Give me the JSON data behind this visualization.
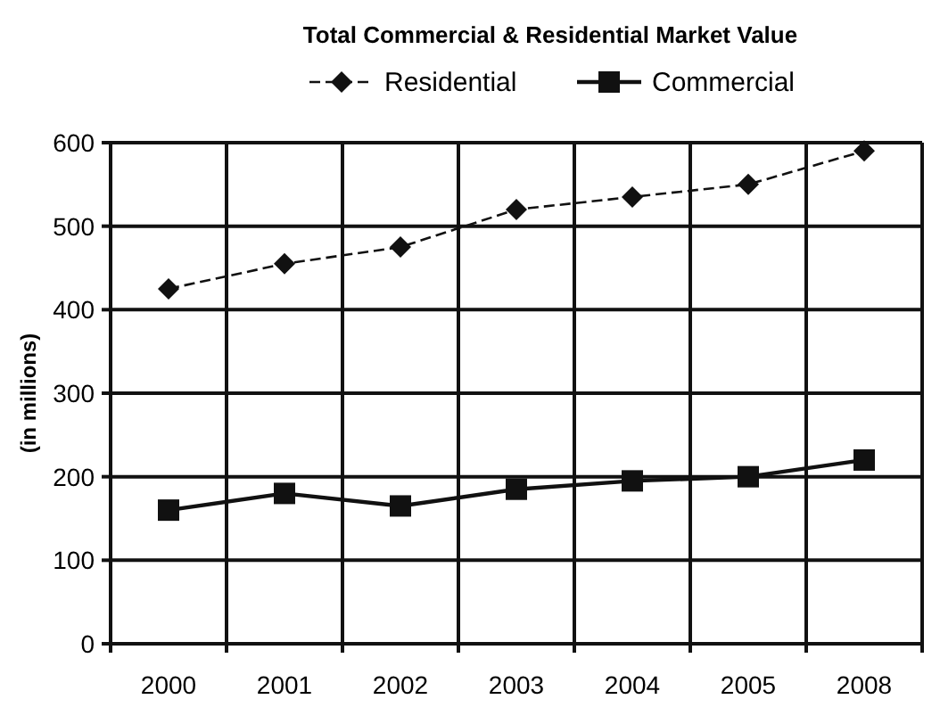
{
  "chart_data": {
    "type": "line",
    "title": "Total Commercial & Residential Market Value",
    "ylabel": "(in millions)",
    "categories": [
      "2000",
      "2001",
      "2002",
      "2003",
      "2004",
      "2005",
      "2008"
    ],
    "series": [
      {
        "name": "Residential",
        "color": "#111111",
        "values": [
          425,
          455,
          475,
          520,
          535,
          550,
          590
        ],
        "marker": "diamond",
        "line_style": "dashed"
      },
      {
        "name": "Commercial",
        "color": "#111111",
        "values": [
          160,
          180,
          165,
          185,
          195,
          200,
          220
        ],
        "marker": "square",
        "line_style": "solid"
      }
    ],
    "ylim": [
      0,
      600
    ],
    "yticks": [
      0,
      100,
      200,
      300,
      400,
      500,
      600
    ],
    "grid": true,
    "legend": "top"
  }
}
